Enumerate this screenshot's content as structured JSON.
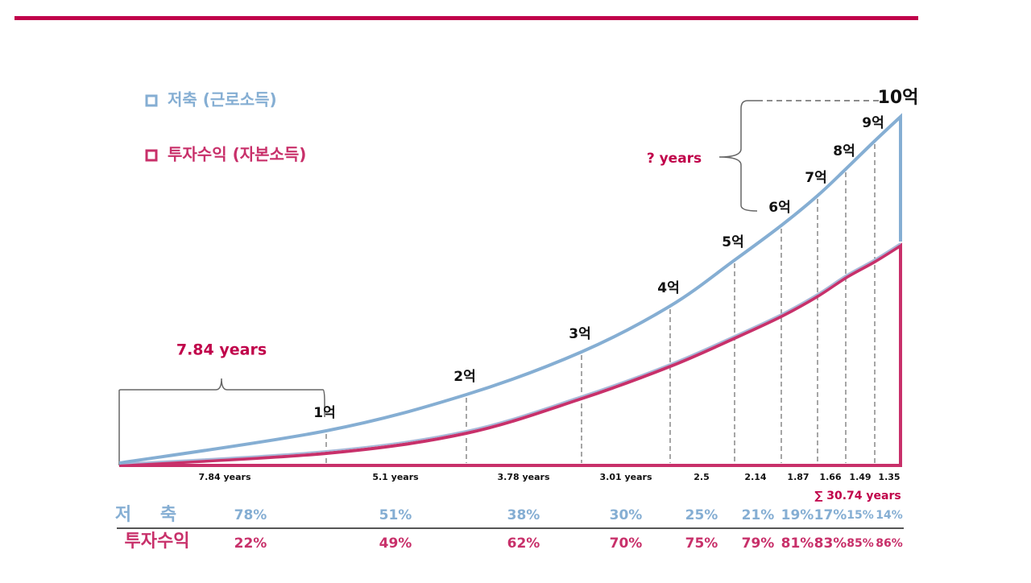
{
  "legend": [
    {
      "label": "저축 (근로소득)"
    },
    {
      "label": "투자수익 (자본소득)"
    }
  ],
  "milestones": [
    "1억",
    "2억",
    "3억",
    "4억",
    "5억",
    "6억",
    "7억",
    "8억",
    "9억",
    "10억"
  ],
  "first_span": "7.84 years",
  "unknown_span": "? years",
  "intervals": [
    "7.84 years",
    "5.1 years",
    "3.78 years",
    "3.01 years",
    "2.5",
    "2.14",
    "1.87",
    "1.66",
    "1.49",
    "1.35"
  ],
  "total": "∑ 30.74 years",
  "rows": [
    {
      "label": "저 축",
      "values": [
        "78%",
        "51%",
        "38%",
        "30%",
        "25%",
        "21%",
        "19%",
        "17%",
        "15%",
        "14%"
      ]
    },
    {
      "label": "투자수익",
      "values": [
        "22%",
        "49%",
        "62%",
        "70%",
        "75%",
        "79%",
        "81%",
        "83%",
        "85%",
        "86%"
      ]
    }
  ]
}
